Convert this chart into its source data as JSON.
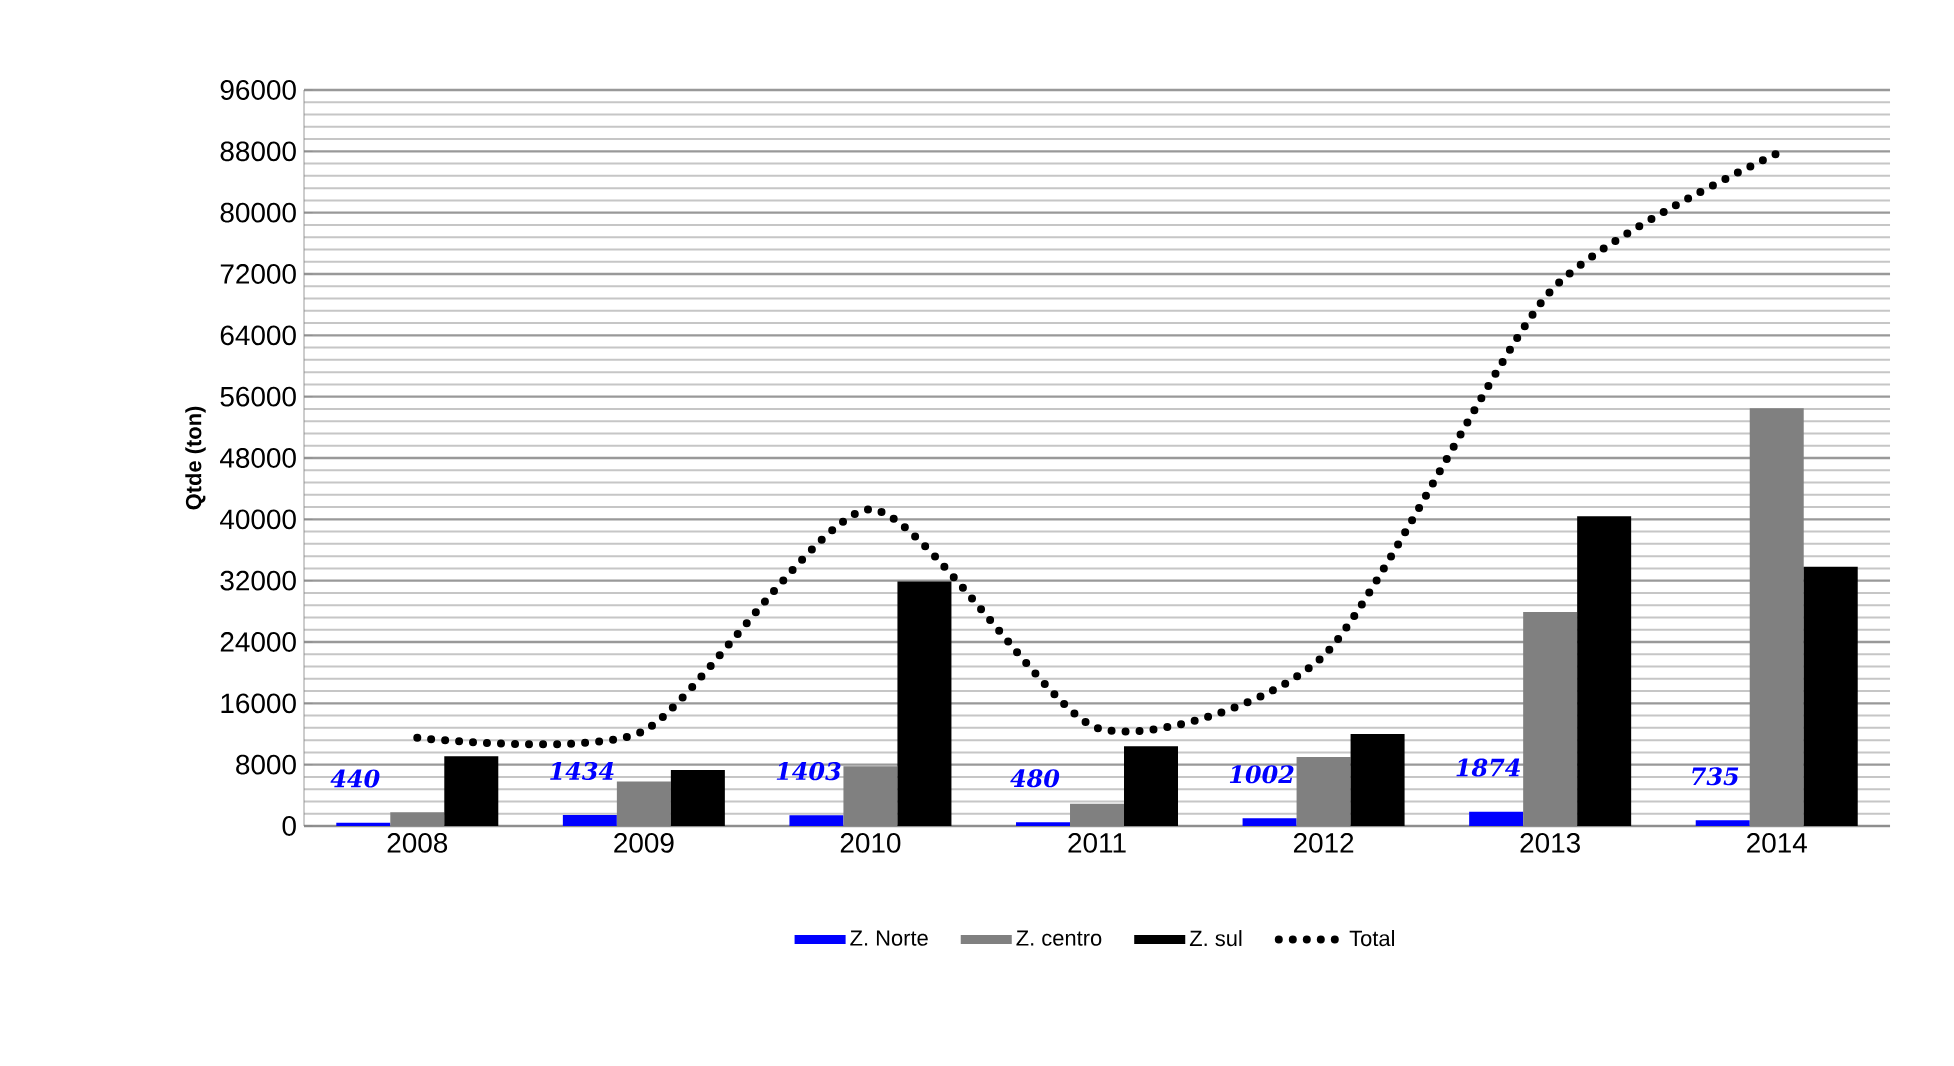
{
  "chart_data": {
    "type": "bar",
    "ylabel": "Qtde (ton)",
    "categories": [
      "2008",
      "2009",
      "2010",
      "2011",
      "2012",
      "2013",
      "2014"
    ],
    "series": [
      {
        "name": "Z. Norte",
        "color": "#0000ff",
        "values": [
          440,
          1434,
          1403,
          480,
          1002,
          1874,
          735
        ],
        "value_labels": [
          "440",
          "1434",
          "1403",
          "480",
          "1002",
          "1874",
          "735"
        ]
      },
      {
        "name": "Z. centro",
        "color": "#808080",
        "values": [
          1800,
          5800,
          7800,
          2900,
          9000,
          27900,
          54500
        ]
      },
      {
        "name": "Z. sul",
        "color": "#000000",
        "values": [
          9100,
          7300,
          31900,
          10400,
          12000,
          40400,
          33800
        ]
      },
      {
        "name": "Total",
        "type": "line",
        "color": "#000000",
        "line_style": "dotted",
        "marker": "none",
        "values": [
          11500,
          12400,
          41300,
          12800,
          22200,
          69700,
          87700
        ]
      }
    ],
    "ylim": [
      0,
      96000
    ],
    "yticks": [
      0,
      8000,
      16000,
      24000,
      32000,
      40000,
      48000,
      56000,
      64000,
      72000,
      80000,
      88000,
      96000
    ],
    "grid": "y",
    "legend": "bottom"
  }
}
